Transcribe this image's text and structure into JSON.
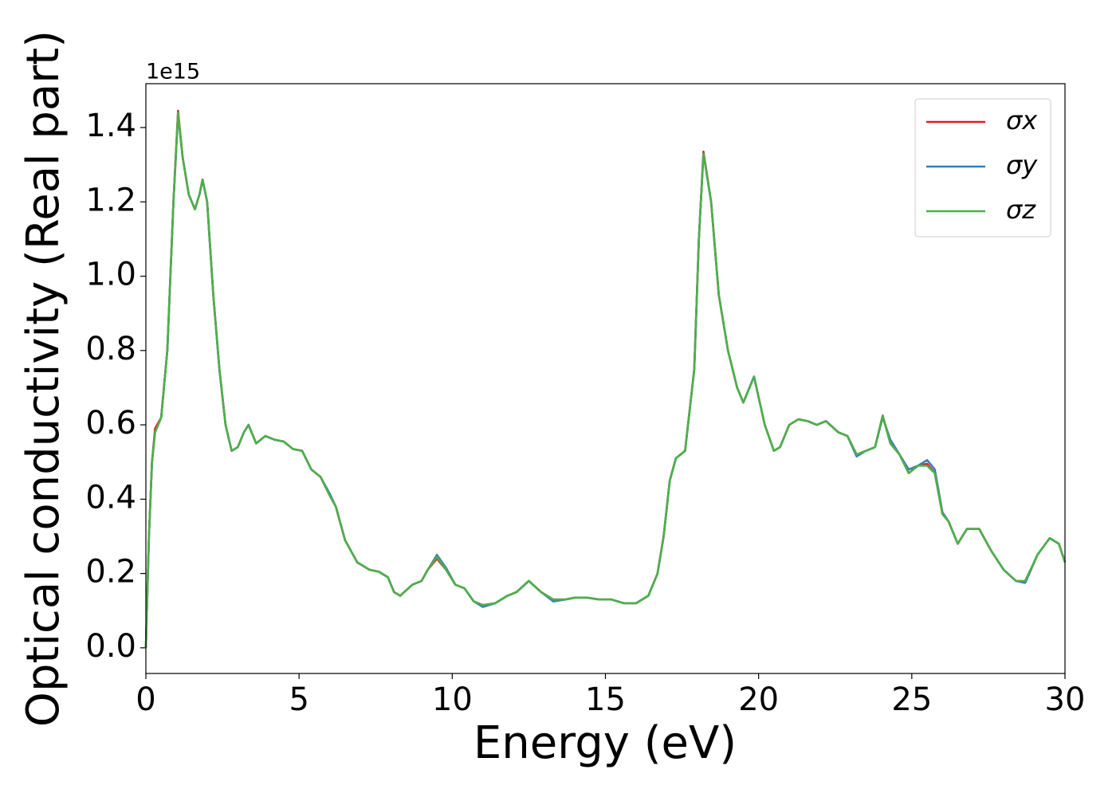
{
  "chart_data": {
    "type": "line",
    "xlabel": "Energy (eV)",
    "ylabel": "Optical conductivity (Real part)",
    "offset_label": "1e15",
    "xlim": [
      0,
      30
    ],
    "xticks": [
      0,
      5,
      10,
      15,
      20,
      25,
      30
    ],
    "ylim": [
      -0.069,
      1.518
    ],
    "yticks": [
      {
        "value": 0,
        "label": "0.0"
      },
      0.2,
      0.4,
      0.6,
      0.8,
      {
        "value": 1,
        "label": "1.0"
      },
      1.2,
      1.4
    ],
    "legend": "upper right",
    "x": [
      0,
      0.1,
      0.2,
      0.3,
      0.5,
      0.7,
      0.9,
      1.05,
      1.2,
      1.4,
      1.6,
      1.75,
      1.85,
      2.0,
      2.2,
      2.4,
      2.6,
      2.8,
      3.0,
      3.2,
      3.35,
      3.6,
      3.9,
      4.2,
      4.5,
      4.8,
      5.1,
      5.4,
      5.7,
      6.0,
      6.2,
      6.5,
      6.9,
      7.3,
      7.6,
      7.9,
      8.1,
      8.3,
      8.7,
      9.0,
      9.2,
      9.5,
      9.8,
      10.1,
      10.4,
      10.7,
      11.0,
      11.4,
      11.8,
      12.1,
      12.5,
      12.9,
      13.3,
      13.7,
      14.0,
      14.4,
      14.8,
      15.2,
      15.6,
      16.0,
      16.4,
      16.7,
      16.9,
      17.1,
      17.3,
      17.6,
      17.9,
      18.05,
      18.2,
      18.45,
      18.7,
      19.0,
      19.3,
      19.5,
      19.85,
      20.2,
      20.5,
      20.7,
      21.0,
      21.3,
      21.6,
      21.9,
      22.2,
      22.6,
      22.9,
      23.2,
      23.5,
      23.8,
      24.05,
      24.3,
      24.6,
      24.9,
      25.2,
      25.5,
      25.75,
      26.0,
      26.2,
      26.5,
      26.8,
      27.2,
      27.6,
      28.0,
      28.4,
      28.7,
      29.1,
      29.5,
      29.8,
      30.0
    ],
    "series": [
      {
        "name": "σx",
        "color": "#e41a1c",
        "values": [
          0,
          0.3,
          0.5,
          0.59,
          0.62,
          0.8,
          1.2,
          1.445,
          1.32,
          1.22,
          1.18,
          1.22,
          1.26,
          1.2,
          0.95,
          0.75,
          0.6,
          0.53,
          0.54,
          0.58,
          0.6,
          0.55,
          0.57,
          0.56,
          0.555,
          0.535,
          0.53,
          0.48,
          0.46,
          0.41,
          0.38,
          0.29,
          0.23,
          0.21,
          0.205,
          0.19,
          0.15,
          0.14,
          0.17,
          0.18,
          0.21,
          0.24,
          0.21,
          0.17,
          0.16,
          0.125,
          0.115,
          0.12,
          0.14,
          0.15,
          0.18,
          0.15,
          0.13,
          0.13,
          0.135,
          0.135,
          0.13,
          0.13,
          0.12,
          0.12,
          0.14,
          0.2,
          0.3,
          0.45,
          0.51,
          0.53,
          0.75,
          1.1,
          1.335,
          1.2,
          0.95,
          0.8,
          0.7,
          0.66,
          0.73,
          0.6,
          0.53,
          0.54,
          0.6,
          0.615,
          0.61,
          0.6,
          0.61,
          0.58,
          0.57,
          0.52,
          0.53,
          0.54,
          0.625,
          0.55,
          0.52,
          0.47,
          0.49,
          0.495,
          0.47,
          0.36,
          0.34,
          0.28,
          0.32,
          0.32,
          0.26,
          0.21,
          0.18,
          0.175,
          0.25,
          0.295,
          0.28,
          0.23
        ]
      },
      {
        "name": "σy",
        "color": "#377eb8",
        "values": [
          0,
          0.3,
          0.5,
          0.58,
          0.62,
          0.8,
          1.2,
          1.435,
          1.32,
          1.22,
          1.18,
          1.22,
          1.26,
          1.2,
          0.95,
          0.75,
          0.6,
          0.53,
          0.54,
          0.58,
          0.6,
          0.55,
          0.57,
          0.56,
          0.555,
          0.535,
          0.53,
          0.48,
          0.46,
          0.415,
          0.38,
          0.29,
          0.23,
          0.21,
          0.205,
          0.19,
          0.15,
          0.14,
          0.17,
          0.18,
          0.21,
          0.25,
          0.215,
          0.17,
          0.16,
          0.125,
          0.11,
          0.12,
          0.14,
          0.15,
          0.18,
          0.15,
          0.125,
          0.13,
          0.135,
          0.135,
          0.13,
          0.13,
          0.12,
          0.12,
          0.14,
          0.2,
          0.3,
          0.45,
          0.51,
          0.53,
          0.75,
          1.1,
          1.33,
          1.2,
          0.95,
          0.8,
          0.7,
          0.66,
          0.73,
          0.6,
          0.53,
          0.54,
          0.6,
          0.615,
          0.61,
          0.6,
          0.61,
          0.58,
          0.57,
          0.515,
          0.53,
          0.54,
          0.62,
          0.56,
          0.52,
          0.48,
          0.49,
          0.505,
          0.48,
          0.365,
          0.34,
          0.28,
          0.32,
          0.32,
          0.26,
          0.21,
          0.18,
          0.175,
          0.25,
          0.295,
          0.28,
          0.23
        ]
      },
      {
        "name": "σz",
        "color": "#4daf4a",
        "values": [
          0,
          0.3,
          0.5,
          0.58,
          0.62,
          0.8,
          1.2,
          1.44,
          1.32,
          1.22,
          1.18,
          1.22,
          1.26,
          1.2,
          0.95,
          0.75,
          0.6,
          0.53,
          0.54,
          0.58,
          0.6,
          0.55,
          0.57,
          0.56,
          0.555,
          0.535,
          0.53,
          0.48,
          0.46,
          0.41,
          0.38,
          0.29,
          0.23,
          0.21,
          0.205,
          0.19,
          0.15,
          0.14,
          0.17,
          0.18,
          0.21,
          0.245,
          0.21,
          0.17,
          0.16,
          0.125,
          0.115,
          0.12,
          0.14,
          0.15,
          0.18,
          0.15,
          0.13,
          0.13,
          0.135,
          0.135,
          0.13,
          0.13,
          0.12,
          0.12,
          0.14,
          0.2,
          0.3,
          0.45,
          0.51,
          0.53,
          0.75,
          1.1,
          1.33,
          1.2,
          0.95,
          0.8,
          0.7,
          0.66,
          0.73,
          0.6,
          0.53,
          0.54,
          0.6,
          0.615,
          0.61,
          0.6,
          0.61,
          0.58,
          0.57,
          0.52,
          0.53,
          0.54,
          0.625,
          0.55,
          0.52,
          0.47,
          0.49,
          0.49,
          0.47,
          0.36,
          0.34,
          0.28,
          0.32,
          0.32,
          0.26,
          0.21,
          0.18,
          0.18,
          0.25,
          0.295,
          0.28,
          0.23
        ]
      }
    ]
  }
}
